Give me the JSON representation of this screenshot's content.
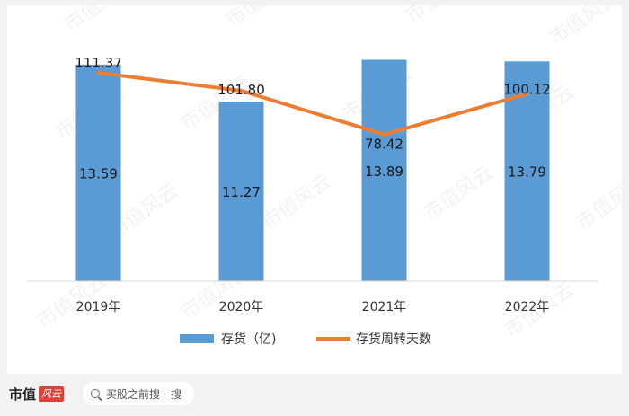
{
  "chart_data": {
    "type": "bar+line",
    "categories": [
      "2019年",
      "2020年",
      "2021年",
      "2022年"
    ],
    "series": [
      {
        "name": "存货（亿)",
        "type": "bar",
        "color": "#5b9bd5",
        "values": [
          13.59,
          11.27,
          13.89,
          13.79
        ],
        "labels": [
          "13.59",
          "11.27",
          "13.89",
          "13.79"
        ],
        "axis": "left",
        "ylim": [
          0,
          14.2
        ]
      },
      {
        "name": "存货周转天数",
        "type": "line",
        "color": "#ed7d31",
        "values": [
          111.37,
          101.8,
          78.42,
          100.12
        ],
        "labels": [
          "111.37",
          "101.80",
          "78.42",
          "100.12"
        ],
        "axis": "right",
        "ylim": [
          0,
          121
        ]
      }
    ],
    "legend_position": "bottom",
    "grid": false,
    "watermark": "市值风云"
  },
  "footer": {
    "brand_name": "市值",
    "brand_badge": "风云",
    "search_placeholder": "买股之前搜一搜"
  }
}
